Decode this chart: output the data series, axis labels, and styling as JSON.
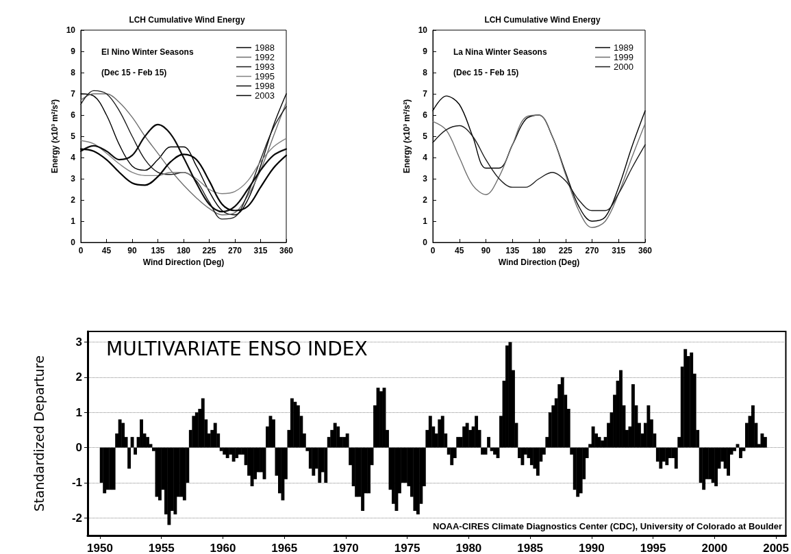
{
  "chart_data": [
    {
      "type": "line",
      "title": "LCH Cumulative Wind Energy",
      "subtitle": "El Nino Winter Seasons",
      "annotations": [
        "(Dec 15 - Feb 15)"
      ],
      "xlabel": "Wind Direction (Deg)",
      "ylabel": "Energy (x10³ m²/s²)",
      "x": [
        0,
        22.5,
        45,
        67.5,
        90,
        112.5,
        135,
        157.5,
        180,
        202.5,
        225,
        247.5,
        270,
        292.5,
        315,
        337.5,
        360
      ],
      "series": [
        {
          "name": "1988",
          "color": "#000000",
          "values": [
            7.0,
            6.9,
            6.0,
            4.6,
            3.6,
            3.4,
            3.9,
            4.5,
            4.5,
            3.6,
            2.4,
            1.5,
            1.3,
            2.0,
            3.6,
            5.5,
            7.0
          ]
        },
        {
          "name": "1992",
          "color": "#6e6e6e",
          "values": [
            6.7,
            7.0,
            7.0,
            6.6,
            5.9,
            5.0,
            4.2,
            3.4,
            2.7,
            2.1,
            1.6,
            1.3,
            1.4,
            2.2,
            3.4,
            5.0,
            6.6
          ]
        },
        {
          "name": "1993",
          "color": "#1a1a1a",
          "values": [
            6.5,
            7.15,
            7.0,
            6.2,
            5.0,
            3.9,
            3.3,
            3.2,
            3.3,
            2.9,
            1.9,
            1.1,
            1.2,
            2.3,
            3.9,
            5.4,
            6.4
          ]
        },
        {
          "name": "1995",
          "color": "#808080",
          "values": [
            4.8,
            4.65,
            4.2,
            3.7,
            3.3,
            3.15,
            3.15,
            3.3,
            3.3,
            3.0,
            2.5,
            2.3,
            2.4,
            2.9,
            3.8,
            4.5,
            4.9
          ]
        },
        {
          "name": "1998",
          "color": "#0d0d0d",
          "values": [
            4.3,
            4.55,
            4.3,
            3.9,
            4.1,
            5.0,
            5.55,
            5.1,
            4.0,
            2.8,
            1.8,
            1.45,
            1.7,
            2.5,
            3.4,
            4.1,
            4.4
          ]
        },
        {
          "name": "2003",
          "color": "#000000",
          "values": [
            4.4,
            4.3,
            3.9,
            3.3,
            2.8,
            2.7,
            3.1,
            3.8,
            4.15,
            3.9,
            2.9,
            1.8,
            1.5,
            1.7,
            2.6,
            3.5,
            4.1
          ]
        }
      ],
      "xlim": [
        0,
        360
      ],
      "xticks": [
        0,
        45,
        90,
        135,
        180,
        225,
        270,
        315,
        360
      ],
      "ylim": [
        0,
        10
      ],
      "yticks": [
        0,
        1,
        2,
        3,
        4,
        5,
        6,
        7,
        8,
        9,
        10
      ],
      "grid": false,
      "legend": "top right",
      "marker": "none",
      "line_style": "solid"
    },
    {
      "type": "line",
      "title": "LCH Cumulative Wind Energy",
      "subtitle": "La Nina Winter Seasons",
      "annotations": [
        "(Dec 15 - Feb 15)"
      ],
      "xlabel": "Wind Direction (Deg)",
      "ylabel": "Energy (x10³ m²/s²)",
      "x": [
        0,
        22.5,
        45,
        67.5,
        90,
        112.5,
        135,
        157.5,
        180,
        202.5,
        225,
        247.5,
        270,
        292.5,
        315,
        337.5,
        360
      ],
      "series": [
        {
          "name": "1989",
          "color": "#000000",
          "values": [
            6.2,
            6.9,
            6.5,
            5.0,
            3.5,
            3.5,
            4.6,
            5.8,
            6.0,
            5.0,
            3.3,
            1.7,
            1.0,
            1.2,
            2.6,
            4.5,
            6.2
          ]
        },
        {
          "name": "1999",
          "color": "#6e6e6e",
          "values": [
            5.7,
            5.3,
            4.0,
            2.7,
            2.25,
            3.1,
            4.6,
            5.9,
            6.0,
            5.0,
            3.2,
            1.5,
            0.7,
            1.0,
            2.3,
            4.0,
            5.6
          ]
        },
        {
          "name": "2000",
          "color": "#1a1a1a",
          "values": [
            4.7,
            5.3,
            5.5,
            5.0,
            3.9,
            3.0,
            2.6,
            2.6,
            3.0,
            3.3,
            2.9,
            2.0,
            1.5,
            1.5,
            2.3,
            3.5,
            4.6
          ]
        }
      ],
      "xlim": [
        0,
        360
      ],
      "xticks": [
        0,
        45,
        90,
        135,
        180,
        225,
        270,
        315,
        360
      ],
      "ylim": [
        0,
        10
      ],
      "yticks": [
        0,
        1,
        2,
        3,
        4,
        5,
        6,
        7,
        8,
        9,
        10
      ],
      "grid": false,
      "legend": "top right",
      "marker": "none",
      "line_style": "solid"
    },
    {
      "type": "bar",
      "title": "MULTIVARIATE ENSO INDEX",
      "ylabel": "Standardized Departure",
      "annotations": [
        "NOAA-CIRES Climate Diagnostics Center (CDC), University of Colorado at Boulder"
      ],
      "x": [
        1950.125,
        1950.375,
        1950.625,
        1950.875,
        1951.125,
        1951.375,
        1951.625,
        1951.875,
        1952.125,
        1952.375,
        1952.625,
        1952.875,
        1953.125,
        1953.375,
        1953.625,
        1953.875,
        1954.125,
        1954.375,
        1954.625,
        1954.875,
        1955.125,
        1955.375,
        1955.625,
        1955.875,
        1956.125,
        1956.375,
        1956.625,
        1956.875,
        1957.125,
        1957.375,
        1957.625,
        1957.875,
        1958.125,
        1958.375,
        1958.625,
        1958.875,
        1959.125,
        1959.375,
        1959.625,
        1959.875,
        1960.125,
        1960.375,
        1960.625,
        1960.875,
        1961.125,
        1961.375,
        1961.625,
        1961.875,
        1962.125,
        1962.375,
        1962.625,
        1962.875,
        1963.125,
        1963.375,
        1963.625,
        1963.875,
        1964.125,
        1964.375,
        1964.625,
        1964.875,
        1965.125,
        1965.375,
        1965.625,
        1965.875,
        1966.125,
        1966.375,
        1966.625,
        1966.875,
        1967.125,
        1967.375,
        1967.625,
        1967.875,
        1968.125,
        1968.375,
        1968.625,
        1968.875,
        1969.125,
        1969.375,
        1969.625,
        1969.875,
        1970.125,
        1970.375,
        1970.625,
        1970.875,
        1971.125,
        1971.375,
        1971.625,
        1971.875,
        1972.125,
        1972.375,
        1972.625,
        1972.875,
        1973.125,
        1973.375,
        1973.625,
        1973.875,
        1974.125,
        1974.375,
        1974.625,
        1974.875,
        1975.125,
        1975.375,
        1975.625,
        1975.875,
        1976.125,
        1976.375,
        1976.625,
        1976.875,
        1977.125,
        1977.375,
        1977.625,
        1977.875,
        1978.125,
        1978.375,
        1978.625,
        1978.875,
        1979.125,
        1979.375,
        1979.625,
        1979.875,
        1980.125,
        1980.375,
        1980.625,
        1980.875,
        1981.125,
        1981.375,
        1981.625,
        1981.875,
        1982.125,
        1982.375,
        1982.625,
        1982.875,
        1983.125,
        1983.375,
        1983.625,
        1983.875,
        1984.125,
        1984.375,
        1984.625,
        1984.875,
        1985.125,
        1985.375,
        1985.625,
        1985.875,
        1986.125,
        1986.375,
        1986.625,
        1986.875,
        1987.125,
        1987.375,
        1987.625,
        1987.875,
        1988.125,
        1988.375,
        1988.625,
        1988.875,
        1989.125,
        1989.375,
        1989.625,
        1989.875,
        1990.125,
        1990.375,
        1990.625,
        1990.875,
        1991.125,
        1991.375,
        1991.625,
        1991.875,
        1992.125,
        1992.375,
        1992.625,
        1992.875,
        1993.125,
        1993.375,
        1993.625,
        1993.875,
        1994.125,
        1994.375,
        1994.625,
        1994.875,
        1995.125,
        1995.375,
        1995.625,
        1995.875,
        1996.125,
        1996.375,
        1996.625,
        1996.875,
        1997.125,
        1997.375,
        1997.625,
        1997.875,
        1998.125,
        1998.375,
        1998.625,
        1998.875,
        1999.125,
        1999.375,
        1999.625,
        1999.875,
        2000.125,
        2000.375,
        2000.625,
        2000.875,
        2001.125,
        2001.375,
        2001.625,
        2001.875,
        2002.125,
        2002.375,
        2002.625,
        2002.875,
        2003.125,
        2003.375,
        2003.625,
        2003.875,
        2004.125
      ],
      "series": [
        {
          "color": "#000000",
          "values": [
            -1.0,
            -1.3,
            -1.2,
            -1.2,
            -1.2,
            0.4,
            0.8,
            0.7,
            0.3,
            -0.6,
            0.3,
            -0.2,
            0.3,
            0.8,
            0.4,
            0.3,
            0.1,
            -0.1,
            -1.4,
            -1.5,
            -1.2,
            -1.9,
            -2.2,
            -1.8,
            -1.9,
            -1.4,
            -1.4,
            -1.5,
            -1.0,
            0.5,
            0.9,
            1.0,
            1.1,
            1.4,
            0.8,
            0.4,
            0.5,
            0.7,
            0.4,
            -0.1,
            -0.2,
            -0.3,
            -0.2,
            -0.4,
            -0.3,
            -0.2,
            -0.2,
            -0.5,
            -0.8,
            -1.1,
            -0.9,
            -0.7,
            -0.7,
            -0.9,
            0.6,
            0.9,
            0.8,
            -0.8,
            -1.3,
            -1.5,
            -0.9,
            0.5,
            1.4,
            1.3,
            1.2,
            0.9,
            0.4,
            -0.1,
            -0.6,
            -0.8,
            -0.6,
            -1.0,
            -0.7,
            -1.0,
            0.3,
            0.5,
            0.7,
            0.6,
            0.3,
            0.3,
            0.4,
            -0.5,
            -1.1,
            -1.4,
            -1.4,
            -1.8,
            -1.3,
            -1.3,
            -0.5,
            1.2,
            1.7,
            1.6,
            1.7,
            0.5,
            -1.2,
            -1.6,
            -1.8,
            -1.3,
            -1.0,
            -1.0,
            -1.1,
            -1.4,
            -1.8,
            -1.9,
            -1.6,
            -1.1,
            0.5,
            0.9,
            0.6,
            0.4,
            0.8,
            0.9,
            0.4,
            -0.2,
            -0.5,
            -0.3,
            0.3,
            0.3,
            0.6,
            0.7,
            0.5,
            0.6,
            0.9,
            0.5,
            -0.2,
            -0.2,
            0.3,
            -0.1,
            -0.2,
            -0.3,
            0.9,
            1.9,
            2.9,
            3.0,
            2.2,
            0.7,
            -0.3,
            -0.5,
            -0.2,
            -0.3,
            -0.5,
            -0.6,
            -0.8,
            -0.4,
            -0.2,
            0.3,
            1.0,
            1.2,
            1.4,
            1.8,
            2.0,
            1.5,
            1.1,
            -0.2,
            -1.2,
            -1.4,
            -1.3,
            -0.9,
            -0.3,
            0.1,
            0.6,
            0.4,
            0.3,
            0.2,
            0.3,
            0.7,
            1.0,
            1.5,
            1.9,
            2.2,
            1.2,
            0.5,
            0.6,
            1.8,
            1.2,
            0.7,
            0.4,
            0.7,
            1.2,
            0.8,
            0.4,
            -0.4,
            -0.6,
            -0.4,
            -0.5,
            -0.3,
            -0.3,
            -0.6,
            0.3,
            2.3,
            2.8,
            2.6,
            2.7,
            2.1,
            0.5,
            -1.0,
            -1.2,
            -0.9,
            -0.9,
            -1.0,
            -1.1,
            -0.6,
            -0.4,
            -0.6,
            -0.8,
            -0.2,
            -0.1,
            0.1,
            -0.3,
            -0.1,
            0.7,
            0.9,
            1.2,
            0.7,
            0.1,
            0.4,
            0.3
          ]
        }
      ],
      "xlim": [
        1949,
        2005.8
      ],
      "xticks": [
        1950,
        1955,
        1960,
        1965,
        1970,
        1975,
        1980,
        1985,
        1990,
        1995,
        2000,
        2005
      ],
      "ylim": [
        -2.5,
        3.3
      ],
      "yticks": [
        -2,
        -1,
        0,
        1,
        2,
        3
      ],
      "grid": "y"
    }
  ]
}
